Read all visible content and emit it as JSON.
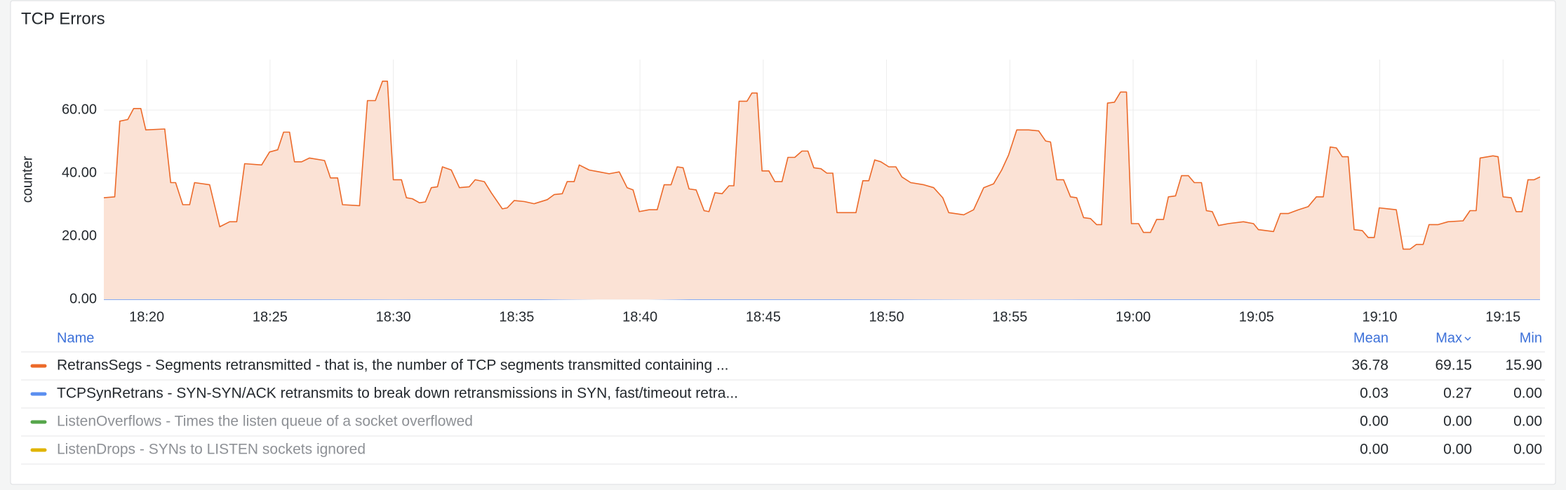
{
  "chart_data": {
    "type": "line",
    "title": "TCP Errors",
    "y_label": "counter",
    "xlim": [
      1098.26,
      1156.5
    ],
    "ylim": [
      0,
      76
    ],
    "grid": true,
    "xticks": [
      {
        "value": 1100,
        "label": "18:20"
      },
      {
        "value": 1105,
        "label": "18:25"
      },
      {
        "value": 1110,
        "label": "18:30"
      },
      {
        "value": 1115,
        "label": "18:35"
      },
      {
        "value": 1120,
        "label": "18:40"
      },
      {
        "value": 1125,
        "label": "18:45"
      },
      {
        "value": 1130,
        "label": "18:50"
      },
      {
        "value": 1135,
        "label": "18:55"
      },
      {
        "value": 1140,
        "label": "19:00"
      },
      {
        "value": 1145,
        "label": "19:05"
      },
      {
        "value": 1150,
        "label": "19:10"
      },
      {
        "value": 1155,
        "label": "19:15"
      }
    ],
    "yticks": [
      {
        "value": 0,
        "label": "0.00"
      },
      {
        "value": 20,
        "label": "20.00"
      },
      {
        "value": 40,
        "label": "40.00"
      },
      {
        "value": 60,
        "label": "60.00"
      }
    ],
    "series": [
      {
        "name": "RetransSegs",
        "color": "#ec6a2a",
        "fill": "#fbe2d5",
        "x": [
          1098.26,
          1098.7,
          1098.91,
          1099.23,
          1099.47,
          1099.76,
          1099.96,
          1100.73,
          1100.97,
          1101.17,
          1101.46,
          1101.74,
          1101.94,
          1102.55,
          1102.96,
          1103.36,
          1103.65,
          1103.97,
          1104.66,
          1104.98,
          1105.31,
          1105.55,
          1105.79,
          1105.99,
          1106.28,
          1106.6,
          1107.21,
          1107.45,
          1107.74,
          1107.94,
          1108.63,
          1108.95,
          1109.27,
          1109.56,
          1109.76,
          1110.0,
          1110.33,
          1110.53,
          1110.77,
          1111.06,
          1111.3,
          1111.54,
          1111.79,
          1111.99,
          1112.35,
          1112.68,
          1113.08,
          1113.32,
          1113.69,
          1113.97,
          1114.42,
          1114.62,
          1114.9,
          1115.31,
          1115.71,
          1116.24,
          1116.52,
          1116.85,
          1117.05,
          1117.33,
          1117.54,
          1117.94,
          1118.35,
          1118.75,
          1119.16,
          1119.48,
          1119.72,
          1119.97,
          1120.37,
          1120.7,
          1120.98,
          1121.26,
          1121.51,
          1121.75,
          1121.99,
          1122.28,
          1122.6,
          1122.8,
          1123.04,
          1123.33,
          1123.61,
          1123.81,
          1124.02,
          1124.34,
          1124.54,
          1124.75,
          1124.95,
          1125.23,
          1125.47,
          1125.76,
          1126.0,
          1126.28,
          1126.57,
          1126.81,
          1127.05,
          1127.34,
          1127.58,
          1127.82,
          1127.99,
          1128.76,
          1129.04,
          1129.28,
          1129.52,
          1129.77,
          1130.09,
          1130.38,
          1130.62,
          1130.98,
          1131.51,
          1131.91,
          1132.28,
          1132.52,
          1133.13,
          1133.53,
          1133.94,
          1134.34,
          1134.67,
          1134.95,
          1135.28,
          1135.76,
          1136.17,
          1136.45,
          1136.65,
          1136.9,
          1137.18,
          1137.46,
          1137.71,
          1137.99,
          1138.27,
          1138.52,
          1138.72,
          1138.96,
          1139.24,
          1139.49,
          1139.73,
          1139.93,
          1140.22,
          1140.42,
          1140.7,
          1140.95,
          1141.23,
          1141.43,
          1141.72,
          1141.96,
          1142.24,
          1142.48,
          1142.77,
          1142.97,
          1143.21,
          1143.46,
          1143.86,
          1144.47,
          1144.88,
          1145.08,
          1145.69,
          1145.97,
          1146.29,
          1146.7,
          1147.1,
          1147.43,
          1147.71,
          1147.99,
          1148.24,
          1148.48,
          1148.72,
          1148.96,
          1149.29,
          1149.53,
          1149.78,
          1149.98,
          1150.34,
          1150.67,
          1150.95,
          1151.23,
          1151.48,
          1151.76,
          1152.0,
          1152.37,
          1152.77,
          1153.38,
          1153.66,
          1153.91,
          1154.07,
          1154.39,
          1154.59,
          1154.8,
          1155.0,
          1155.33,
          1155.53,
          1155.77,
          1156.01,
          1156.26,
          1156.5
        ],
        "values": [
          32.2,
          32.5,
          56.5,
          57,
          60.5,
          60.5,
          53.7,
          54,
          37,
          37,
          30,
          30,
          37,
          36.3,
          23,
          24.6,
          24.6,
          43,
          42.6,
          46.7,
          47.4,
          53,
          53,
          43.6,
          43.6,
          44.8,
          44,
          38.5,
          38.5,
          30,
          29.7,
          63,
          63,
          69.15,
          69.15,
          37.9,
          37.9,
          32.2,
          31.9,
          30.6,
          30.9,
          35.4,
          35.7,
          42,
          41,
          35.4,
          35.7,
          37.9,
          37.3,
          33.8,
          28.7,
          29,
          31.3,
          31,
          30.3,
          31.6,
          33.2,
          33.5,
          37.3,
          37.3,
          42.6,
          41,
          40.4,
          39.8,
          40.4,
          35.4,
          34.7,
          27.8,
          28.4,
          28.4,
          36.3,
          36.3,
          42,
          41.7,
          35,
          34.7,
          28.1,
          27.8,
          33.8,
          33.5,
          36,
          36,
          62.8,
          62.8,
          65.4,
          65.4,
          40.7,
          40.7,
          37.3,
          37.3,
          45,
          45,
          47,
          47,
          41.7,
          41.4,
          40,
          40,
          27.5,
          27.5,
          37.6,
          37.6,
          44.2,
          43.6,
          42,
          42,
          38.8,
          37,
          36.3,
          35.4,
          32.2,
          27.5,
          26.8,
          28.4,
          35.4,
          36.6,
          41,
          45.8,
          53.7,
          53.7,
          53.4,
          50.2,
          49.9,
          37.9,
          37.9,
          32.5,
          32.2,
          25.9,
          25.6,
          23.7,
          23.7,
          62.2,
          62.5,
          65.7,
          65.7,
          24,
          24,
          21.2,
          21.2,
          25.3,
          25.3,
          32.5,
          32.8,
          39.2,
          39.2,
          37,
          37,
          28.1,
          27.8,
          23.4,
          24,
          24.6,
          24,
          22.1,
          21.5,
          27.2,
          27.2,
          28.4,
          29.4,
          32.5,
          32.5,
          48.3,
          48,
          45.2,
          45.2,
          22.1,
          21.8,
          19.6,
          19.6,
          29,
          28.7,
          28.4,
          15.9,
          15.9,
          17.4,
          17.4,
          23.7,
          23.7,
          24.6,
          24.9,
          28.1,
          28.1,
          44.8,
          45.2,
          45.5,
          45.2,
          32.5,
          32.2,
          27.8,
          27.8,
          37.9,
          37.9,
          38.8
        ]
      },
      {
        "name": "TCPSynRetrans",
        "color": "#5b8ff0",
        "x": [
          1098.26,
          1104,
          1110,
          1116,
          1119.5,
          1122,
          1128,
          1134,
          1140,
          1146,
          1152,
          1156.5
        ],
        "values": [
          0.03,
          0,
          0.07,
          0,
          0.27,
          0,
          0,
          0.13,
          0,
          0,
          0,
          0
        ]
      }
    ]
  },
  "legend": {
    "columns": [
      "Name",
      "Mean",
      "Max",
      "Min"
    ],
    "rows": [
      {
        "name": "RetransSegs - Segments retransmitted - that is, the number of TCP segments transmitted containing ...",
        "color": "#ec6a2a",
        "dimmed": false,
        "mean": "36.78",
        "max": "69.15",
        "min": "15.90"
      },
      {
        "name": "TCPSynRetrans - SYN-SYN/ACK retransmits to break down retransmissions in SYN, fast/timeout retra...",
        "color": "#5b8ff0",
        "dimmed": false,
        "mean": "0.03",
        "max": "0.27",
        "min": "0.00"
      },
      {
        "name": "ListenOverflows - Times the listen queue of a socket overflowed",
        "color": "#56a64b",
        "dimmed": true,
        "mean": "0.00",
        "max": "0.00",
        "min": "0.00"
      },
      {
        "name": "ListenDrops - SYNs to LISTEN sockets ignored",
        "color": "#e0b400",
        "dimmed": true,
        "mean": "0.00",
        "max": "0.00",
        "min": "0.00"
      }
    ]
  }
}
